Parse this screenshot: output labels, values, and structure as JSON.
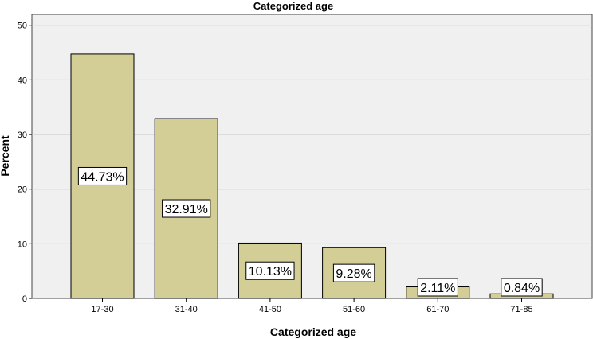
{
  "chart_data": {
    "type": "bar",
    "title": "Categorized age",
    "xlabel": "Categorized age",
    "ylabel": "Percent",
    "categories": [
      "17-30",
      "31-40",
      "41-50",
      "51-60",
      "61-70",
      "71-85"
    ],
    "values": [
      44.73,
      32.91,
      10.13,
      9.28,
      2.11,
      0.84
    ],
    "data_labels": [
      "44.73%",
      "32.91%",
      "10.13%",
      "9.28%",
      "2.11%",
      "0.84%"
    ],
    "ylim": [
      0,
      52
    ],
    "yticks": [
      0,
      10,
      20,
      30,
      40,
      50
    ],
    "grid": true,
    "colors": {
      "bar_fill": "#d3cd96",
      "bar_stroke": "#000000",
      "plot_background": "#f0f0f0",
      "gridline": "#c8c8c8",
      "label_box": "#ffffff"
    }
  }
}
